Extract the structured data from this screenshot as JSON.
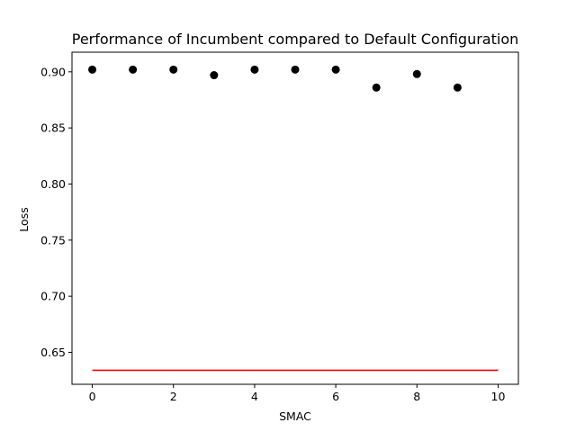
{
  "chart_data": {
    "type": "scatter",
    "title": "Performance of Incumbent compared to Default Configuration",
    "xlabel": "SMAC",
    "ylabel": "Loss",
    "xlim": [
      -0.5,
      10.5
    ],
    "ylim": [
      0.6215,
      0.9175
    ],
    "xticks": [
      0,
      2,
      4,
      6,
      8,
      10
    ],
    "xtick_labels": [
      "0",
      "2",
      "4",
      "6",
      "8",
      "10"
    ],
    "yticks": [
      0.65,
      0.7,
      0.75,
      0.8,
      0.85,
      0.9
    ],
    "ytick_labels": [
      "0.65",
      "0.70",
      "0.75",
      "0.80",
      "0.85",
      "0.90"
    ],
    "grid": false,
    "legend": "none",
    "series": [
      {
        "kind": "scatter",
        "color": "#000000",
        "x": [
          0,
          1,
          2,
          3,
          4,
          5,
          6,
          7,
          8,
          9
        ],
        "y": [
          0.902,
          0.902,
          0.902,
          0.897,
          0.902,
          0.902,
          0.902,
          0.886,
          0.898,
          0.886
        ]
      },
      {
        "kind": "line",
        "color": "#ff0000",
        "x": [
          0,
          10
        ],
        "y": [
          0.634,
          0.634
        ]
      }
    ]
  }
}
